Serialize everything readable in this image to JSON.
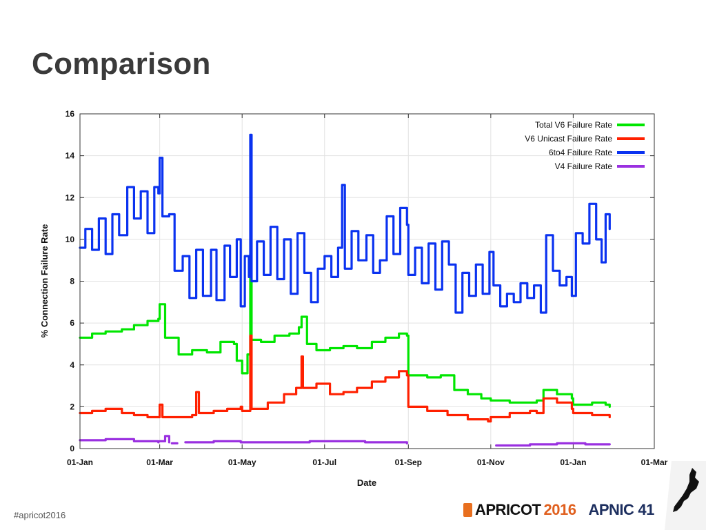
{
  "slide": {
    "title": "Comparison",
    "hashtag": "#apricot2016"
  },
  "logos": {
    "apricot_text": "APRICOT",
    "apricot_year": "2016",
    "apnic_text": "APNIC",
    "apnic_number": "41"
  },
  "colors": {
    "total_v6": "#00e600",
    "v6_unicast": "#ff2000",
    "sixto4": "#0a32f0",
    "v4": "#9a30e0"
  },
  "chart_data": {
    "type": "line",
    "xlabel": "Date",
    "ylabel": "% Connection Failure Rate",
    "ylim": [
      0,
      16
    ],
    "yticks": [
      0,
      2,
      4,
      6,
      8,
      10,
      12,
      14,
      16
    ],
    "x_type": "date",
    "xlim": [
      "2015-01-01",
      "2016-03-01"
    ],
    "xtick_labels": [
      "01-Jan",
      "01-Mar",
      "01-May",
      "01-Jul",
      "01-Sep",
      "01-Nov",
      "01-Jan",
      "01-Mar"
    ],
    "xticks": [
      "2015-01-01",
      "2015-03-01",
      "2015-05-01",
      "2015-07-01",
      "2015-09-01",
      "2015-11-01",
      "2016-01-01",
      "2016-03-01"
    ],
    "grid": true,
    "legend_position": "top-right",
    "series": [
      {
        "name": "Total V6 Failure Rate",
        "color": "#00e600",
        "points": [
          [
            "2015-01-01",
            5.3
          ],
          [
            "2015-01-10",
            5.5
          ],
          [
            "2015-01-20",
            5.6
          ],
          [
            "2015-02-01",
            5.7
          ],
          [
            "2015-02-10",
            5.9
          ],
          [
            "2015-02-20",
            6.1
          ],
          [
            "2015-02-28",
            6.2
          ],
          [
            "2015-03-01",
            6.9
          ],
          [
            "2015-03-05",
            5.3
          ],
          [
            "2015-03-15",
            4.5
          ],
          [
            "2015-03-25",
            4.7
          ],
          [
            "2015-04-05",
            4.6
          ],
          [
            "2015-04-15",
            5.1
          ],
          [
            "2015-04-25",
            5.0
          ],
          [
            "2015-04-27",
            4.2
          ],
          [
            "2015-05-01",
            3.6
          ],
          [
            "2015-05-05",
            4.5
          ],
          [
            "2015-05-07",
            9.3
          ],
          [
            "2015-05-08",
            5.2
          ],
          [
            "2015-05-15",
            5.1
          ],
          [
            "2015-05-25",
            5.4
          ],
          [
            "2015-06-05",
            5.5
          ],
          [
            "2015-06-12",
            5.8
          ],
          [
            "2015-06-14",
            6.3
          ],
          [
            "2015-06-18",
            5.0
          ],
          [
            "2015-06-25",
            4.7
          ],
          [
            "2015-07-05",
            4.8
          ],
          [
            "2015-07-15",
            4.9
          ],
          [
            "2015-07-25",
            4.8
          ],
          [
            "2015-08-05",
            5.1
          ],
          [
            "2015-08-15",
            5.3
          ],
          [
            "2015-08-25",
            5.5
          ],
          [
            "2015-08-31",
            5.4
          ],
          [
            "2015-09-01",
            3.5
          ],
          [
            "2015-09-15",
            3.4
          ],
          [
            "2015-09-25",
            3.5
          ],
          [
            "2015-10-05",
            2.8
          ],
          [
            "2015-10-15",
            2.6
          ],
          [
            "2015-10-25",
            2.4
          ],
          [
            "2015-11-01",
            2.3
          ],
          [
            "2015-11-15",
            2.2
          ],
          [
            "2015-11-25",
            2.2
          ],
          [
            "2015-12-05",
            2.3
          ],
          [
            "2015-12-10",
            2.8
          ],
          [
            "2015-12-20",
            2.6
          ],
          [
            "2015-12-31",
            2.4
          ],
          [
            "2016-01-01",
            2.1
          ],
          [
            "2016-01-15",
            2.2
          ],
          [
            "2016-01-25",
            2.1
          ],
          [
            "2016-01-28",
            2.0
          ]
        ]
      },
      {
        "name": "V6 Unicast Failure Rate",
        "color": "#ff2000",
        "points": [
          [
            "2015-01-01",
            1.7
          ],
          [
            "2015-01-10",
            1.8
          ],
          [
            "2015-01-20",
            1.9
          ],
          [
            "2015-02-01",
            1.7
          ],
          [
            "2015-02-10",
            1.6
          ],
          [
            "2015-02-20",
            1.5
          ],
          [
            "2015-02-28",
            1.5
          ],
          [
            "2015-03-01",
            2.1
          ],
          [
            "2015-03-03",
            1.5
          ],
          [
            "2015-03-15",
            1.5
          ],
          [
            "2015-03-25",
            1.6
          ],
          [
            "2015-03-28",
            2.7
          ],
          [
            "2015-03-30",
            1.7
          ],
          [
            "2015-04-10",
            1.8
          ],
          [
            "2015-04-20",
            1.9
          ],
          [
            "2015-04-30",
            2.0
          ],
          [
            "2015-05-01",
            1.8
          ],
          [
            "2015-05-07",
            5.4
          ],
          [
            "2015-05-08",
            1.9
          ],
          [
            "2015-05-20",
            2.2
          ],
          [
            "2015-06-01",
            2.6
          ],
          [
            "2015-06-10",
            2.9
          ],
          [
            "2015-06-14",
            4.4
          ],
          [
            "2015-06-15",
            2.9
          ],
          [
            "2015-06-25",
            3.1
          ],
          [
            "2015-07-05",
            2.6
          ],
          [
            "2015-07-15",
            2.7
          ],
          [
            "2015-07-25",
            2.9
          ],
          [
            "2015-08-05",
            3.2
          ],
          [
            "2015-08-15",
            3.4
          ],
          [
            "2015-08-25",
            3.7
          ],
          [
            "2015-08-31",
            3.5
          ],
          [
            "2015-09-01",
            2.0
          ],
          [
            "2015-09-15",
            1.8
          ],
          [
            "2015-09-30",
            1.6
          ],
          [
            "2015-10-15",
            1.4
          ],
          [
            "2015-10-30",
            1.3
          ],
          [
            "2015-11-01",
            1.5
          ],
          [
            "2015-11-15",
            1.7
          ],
          [
            "2015-11-30",
            1.8
          ],
          [
            "2015-12-05",
            1.7
          ],
          [
            "2015-12-10",
            2.4
          ],
          [
            "2015-12-20",
            2.2
          ],
          [
            "2015-12-31",
            1.9
          ],
          [
            "2016-01-01",
            1.7
          ],
          [
            "2016-01-15",
            1.6
          ],
          [
            "2016-01-28",
            1.5
          ]
        ]
      },
      {
        "name": "6to4 Failure Rate",
        "color": "#0a32f0",
        "points": [
          [
            "2015-01-01",
            9.6
          ],
          [
            "2015-01-05",
            10.5
          ],
          [
            "2015-01-10",
            9.5
          ],
          [
            "2015-01-15",
            11.0
          ],
          [
            "2015-01-20",
            9.3
          ],
          [
            "2015-01-25",
            11.2
          ],
          [
            "2015-01-30",
            10.2
          ],
          [
            "2015-02-05",
            12.5
          ],
          [
            "2015-02-10",
            11.0
          ],
          [
            "2015-02-15",
            12.3
          ],
          [
            "2015-02-20",
            10.3
          ],
          [
            "2015-02-25",
            12.5
          ],
          [
            "2015-02-28",
            12.2
          ],
          [
            "2015-03-01",
            13.9
          ],
          [
            "2015-03-03",
            11.1
          ],
          [
            "2015-03-08",
            11.2
          ],
          [
            "2015-03-12",
            8.5
          ],
          [
            "2015-03-18",
            9.2
          ],
          [
            "2015-03-23",
            7.2
          ],
          [
            "2015-03-28",
            9.5
          ],
          [
            "2015-04-02",
            7.3
          ],
          [
            "2015-04-08",
            9.5
          ],
          [
            "2015-04-12",
            7.1
          ],
          [
            "2015-04-18",
            9.7
          ],
          [
            "2015-04-22",
            8.2
          ],
          [
            "2015-04-27",
            10.0
          ],
          [
            "2015-04-30",
            6.8
          ],
          [
            "2015-05-03",
            9.2
          ],
          [
            "2015-05-06",
            8.2
          ],
          [
            "2015-05-07",
            15.0
          ],
          [
            "2015-05-08",
            8.0
          ],
          [
            "2015-05-12",
            9.9
          ],
          [
            "2015-05-17",
            8.3
          ],
          [
            "2015-05-22",
            10.6
          ],
          [
            "2015-05-27",
            8.1
          ],
          [
            "2015-06-01",
            10.0
          ],
          [
            "2015-06-06",
            7.4
          ],
          [
            "2015-06-11",
            10.3
          ],
          [
            "2015-06-16",
            8.4
          ],
          [
            "2015-06-21",
            7.0
          ],
          [
            "2015-06-26",
            8.6
          ],
          [
            "2015-07-01",
            9.2
          ],
          [
            "2015-07-06",
            8.2
          ],
          [
            "2015-07-11",
            9.6
          ],
          [
            "2015-07-14",
            12.6
          ],
          [
            "2015-07-16",
            8.6
          ],
          [
            "2015-07-21",
            10.4
          ],
          [
            "2015-07-26",
            9.0
          ],
          [
            "2015-08-01",
            10.2
          ],
          [
            "2015-08-06",
            8.4
          ],
          [
            "2015-08-11",
            9.0
          ],
          [
            "2015-08-16",
            11.1
          ],
          [
            "2015-08-21",
            9.3
          ],
          [
            "2015-08-26",
            11.5
          ],
          [
            "2015-08-31",
            10.7
          ],
          [
            "2015-09-01",
            8.3
          ],
          [
            "2015-09-06",
            9.6
          ],
          [
            "2015-09-11",
            7.9
          ],
          [
            "2015-09-16",
            9.8
          ],
          [
            "2015-09-21",
            7.6
          ],
          [
            "2015-09-26",
            9.9
          ],
          [
            "2015-10-01",
            8.8
          ],
          [
            "2015-10-06",
            6.5
          ],
          [
            "2015-10-11",
            8.4
          ],
          [
            "2015-10-16",
            7.3
          ],
          [
            "2015-10-21",
            8.8
          ],
          [
            "2015-10-26",
            7.4
          ],
          [
            "2015-10-31",
            9.4
          ],
          [
            "2015-11-03",
            7.8
          ],
          [
            "2015-11-08",
            6.8
          ],
          [
            "2015-11-13",
            7.4
          ],
          [
            "2015-11-18",
            7.0
          ],
          [
            "2015-11-23",
            7.9
          ],
          [
            "2015-11-28",
            7.2
          ],
          [
            "2015-12-03",
            7.8
          ],
          [
            "2015-12-08",
            6.5
          ],
          [
            "2015-12-12",
            10.2
          ],
          [
            "2015-12-17",
            8.5
          ],
          [
            "2015-12-22",
            7.8
          ],
          [
            "2015-12-27",
            8.2
          ],
          [
            "2015-12-31",
            7.3
          ],
          [
            "2016-01-03",
            10.3
          ],
          [
            "2016-01-08",
            9.8
          ],
          [
            "2016-01-13",
            11.7
          ],
          [
            "2016-01-18",
            10.0
          ],
          [
            "2016-01-22",
            8.9
          ],
          [
            "2016-01-25",
            11.2
          ],
          [
            "2016-01-28",
            10.5
          ]
        ]
      },
      {
        "name": "V4 Failure Rate",
        "color": "#9a30e0",
        "segments": [
          [
            [
              "2015-01-01",
              0.4
            ],
            [
              "2015-01-20",
              0.45
            ],
            [
              "2015-02-10",
              0.35
            ],
            [
              "2015-02-28",
              0.3
            ]
          ],
          [
            [
              "2015-03-01",
              0.35
            ],
            [
              "2015-03-05",
              0.6
            ],
            [
              "2015-03-08",
              0.3
            ]
          ],
          [
            [
              "2015-03-10",
              0.25
            ],
            [
              "2015-03-14",
              0.25
            ]
          ],
          [
            [
              "2015-03-20",
              0.3
            ],
            [
              "2015-04-10",
              0.35
            ],
            [
              "2015-04-30",
              0.3
            ],
            [
              "2015-05-31",
              0.3
            ],
            [
              "2015-06-20",
              0.35
            ],
            [
              "2015-07-31",
              0.3
            ],
            [
              "2015-08-31",
              0.25
            ]
          ],
          [
            [
              "2015-11-05",
              0.15
            ],
            [
              "2015-11-30",
              0.2
            ],
            [
              "2015-12-20",
              0.25
            ],
            [
              "2016-01-10",
              0.2
            ],
            [
              "2016-01-28",
              0.2
            ]
          ]
        ]
      }
    ]
  }
}
